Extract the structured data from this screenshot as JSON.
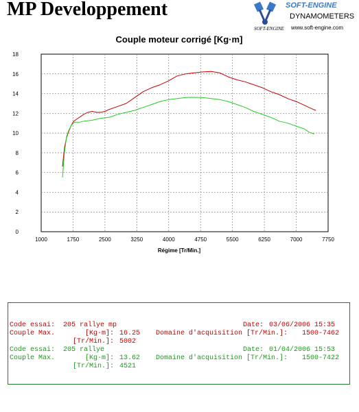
{
  "header": {
    "title": "MP Developpement",
    "logo": {
      "brand": "SOFT-ENGINE",
      "product": "DYNAMOMETERS",
      "url": "www.soft-engine.com",
      "signature": "SOFT-ENGINE"
    }
  },
  "chart_data": {
    "type": "line",
    "title": "Couple moteur corrigé [Kg·m]",
    "xlabel": "Régime [Tr/Min.]",
    "ylabel": "",
    "xlim": [
      1000,
      7750
    ],
    "ylim": [
      0,
      18
    ],
    "x_ticks": [
      "1000",
      "1750",
      "2500",
      "3250",
      "4000",
      "4750",
      "5500",
      "6250",
      "7000",
      "7750"
    ],
    "y_ticks": [
      "18",
      "16",
      "14",
      "12",
      "10",
      "8",
      "6",
      "4",
      "2",
      "0"
    ],
    "grid": true,
    "series": [
      {
        "color": "#c00000",
        "x": [
          1500,
          1550,
          1600,
          1650,
          1700,
          1750,
          1800,
          1900,
          2000,
          2100,
          2200,
          2300,
          2400,
          2500,
          2600,
          2800,
          3000,
          3200,
          3400,
          3600,
          3800,
          4000,
          4200,
          4400,
          4600,
          4800,
          5000,
          5200,
          5400,
          5600,
          5800,
          6000,
          6200,
          6400,
          6600,
          6800,
          7000,
          7200,
          7400,
          7462
        ],
        "y": [
          6.6,
          8.6,
          9.6,
          10.2,
          10.7,
          11.1,
          11.3,
          11.6,
          11.9,
          12.1,
          12.2,
          12.1,
          12.1,
          12.2,
          12.4,
          12.7,
          13.0,
          13.6,
          14.2,
          14.6,
          14.9,
          15.3,
          15.8,
          16.0,
          16.1,
          16.2,
          16.25,
          16.1,
          15.7,
          15.4,
          15.2,
          14.9,
          14.6,
          14.2,
          13.9,
          13.5,
          13.2,
          12.8,
          12.4,
          12.3
        ]
      },
      {
        "color": "#22cc22",
        "x": [
          1500,
          1550,
          1600,
          1650,
          1700,
          1750,
          1800,
          1900,
          2000,
          2200,
          2400,
          2600,
          2800,
          3000,
          3200,
          3400,
          3600,
          3800,
          4000,
          4200,
          4400,
          4521,
          4800,
          5000,
          5200,
          5400,
          5600,
          5800,
          6000,
          6200,
          6400,
          6600,
          6800,
          7000,
          7200,
          7300,
          7422
        ],
        "y": [
          5.5,
          8.2,
          9.7,
          10.3,
          10.7,
          11.0,
          11.1,
          11.1,
          11.2,
          11.3,
          11.5,
          11.6,
          11.9,
          12.1,
          12.3,
          12.6,
          12.9,
          13.2,
          13.4,
          13.5,
          13.6,
          13.62,
          13.6,
          13.5,
          13.4,
          13.2,
          12.9,
          12.6,
          12.2,
          11.9,
          11.6,
          11.2,
          11.0,
          10.7,
          10.4,
          10.1,
          9.9
        ]
      }
    ]
  },
  "records": [
    {
      "color": "#c00000",
      "code_label": "Code essai:",
      "code_value": "205 rallye mp",
      "date_label": "Date:",
      "date_value": "03/06/2006 15:35",
      "couple_label": "Couple Max.",
      "couple_unit": "[Kg·m]:",
      "couple_value": "16.25",
      "domain_label": "Domaine d'acquisition [Tr/Min.]:",
      "domain_value": "1500-7462",
      "rpm_unit": "[Tr/Min.]:",
      "rpm_value": "5002"
    },
    {
      "color": "#1a9a1a",
      "code_label": "Code essai:",
      "code_value": "205 rallye",
      "date_label": "Date:",
      "date_value": "01/04/2006 15:53",
      "couple_label": "Couple Max.",
      "couple_unit": "[Kg·m]:",
      "couple_value": "13.62",
      "domain_label": "Domaine d'acquisition [Tr/Min.]:",
      "domain_value": "1500-7422",
      "rpm_unit": "[Tr/Min.]:",
      "rpm_value": "4521"
    }
  ]
}
